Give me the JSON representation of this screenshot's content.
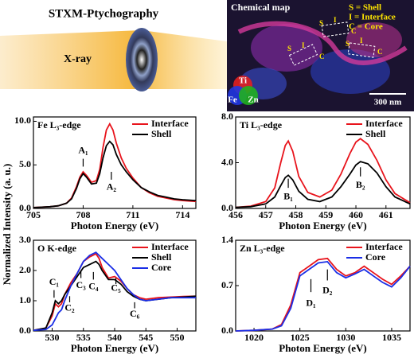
{
  "illustration": {
    "title": "STXM-Ptychography",
    "beam_label": "X-ray"
  },
  "map": {
    "title": "Chemical map",
    "legend": [
      "S = Shell",
      "I = Interface",
      "C = Core"
    ],
    "scale_bar": "300 nm",
    "channels": [
      "Ti",
      "Fe",
      "Zn"
    ],
    "boxes": [
      [
        "S",
        "I",
        "C"
      ],
      [
        "S",
        "I",
        "C"
      ],
      [
        "S",
        "I",
        "C"
      ]
    ]
  },
  "y_label": "Normalized Intensity (a. u.)",
  "chart_data": [
    {
      "type": "line",
      "title": "Fe L₃-edge",
      "xlabel": "Photon Energy (eV)",
      "xlim": [
        705,
        714.8
      ],
      "xticks": [
        705,
        708,
        711,
        714
      ],
      "ylim": [
        0,
        10.5
      ],
      "yticks": [
        {
          "value": 0,
          "label": "0.0"
        },
        {
          "value": 5,
          "label": "5.0"
        },
        {
          "value": 10,
          "label": "10.0"
        }
      ],
      "legend": "upper right",
      "annotations": [
        "A₁",
        "A₂"
      ],
      "x": [
        705,
        705.5,
        706,
        706.5,
        707,
        707.3,
        707.6,
        707.8,
        708.0,
        708.2,
        708.5,
        708.8,
        709.0,
        709.2,
        709.4,
        709.6,
        709.8,
        710.0,
        710.3,
        710.6,
        711,
        711.5,
        712,
        712.5,
        713,
        713.5,
        714,
        714.8
      ],
      "series": [
        {
          "name": "Interface",
          "color": "#e8141c",
          "values": [
            0.1,
            0.15,
            0.2,
            0.3,
            0.6,
            1.2,
            2.5,
            3.6,
            4.2,
            3.8,
            3.0,
            3.2,
            4.5,
            7.0,
            9.0,
            9.7,
            9.0,
            7.5,
            5.8,
            4.6,
            3.5,
            2.4,
            1.8,
            1.4,
            1.2,
            1.0,
            0.9,
            0.8
          ]
        },
        {
          "name": "Shell",
          "color": "#000000",
          "values": [
            0.1,
            0.15,
            0.2,
            0.3,
            0.6,
            1.1,
            2.3,
            3.4,
            4.0,
            3.6,
            2.8,
            2.9,
            4.0,
            5.8,
            7.2,
            7.7,
            7.3,
            6.2,
            5.0,
            4.2,
            3.3,
            2.4,
            1.9,
            1.5,
            1.3,
            1.1,
            1.0,
            0.9
          ]
        }
      ]
    },
    {
      "type": "line",
      "title": "Ti L₃-edge",
      "xlabel": "Photon Energy (eV)",
      "xlim": [
        456,
        461.8
      ],
      "xticks": [
        456,
        457,
        458,
        459,
        460,
        461
      ],
      "ylim": [
        0,
        8
      ],
      "yticks": [
        {
          "value": 0,
          "label": "0.0"
        },
        {
          "value": 4,
          "label": "4.0"
        },
        {
          "value": 8,
          "label": "8.0"
        }
      ],
      "legend": "upper right",
      "annotations": [
        "B₁",
        "B₂"
      ],
      "x": [
        456,
        456.5,
        457,
        457.3,
        457.5,
        457.65,
        457.75,
        457.9,
        458.1,
        458.4,
        458.8,
        459.2,
        459.5,
        459.8,
        460.0,
        460.15,
        460.4,
        460.7,
        461,
        461.3,
        461.8
      ],
      "series": [
        {
          "name": "Interface",
          "color": "#e8141c",
          "values": [
            0.1,
            0.2,
            0.6,
            1.8,
            4.0,
            5.5,
            5.9,
            5.0,
            2.8,
            1.4,
            1.0,
            1.6,
            3.0,
            4.8,
            5.8,
            6.1,
            5.6,
            4.2,
            2.5,
            1.3,
            0.5
          ]
        },
        {
          "name": "Shell",
          "color": "#000000",
          "values": [
            0.1,
            0.15,
            0.4,
            1.0,
            2.0,
            2.7,
            2.9,
            2.5,
            1.5,
            0.8,
            0.6,
            1.0,
            1.9,
            3.0,
            3.8,
            4.1,
            3.9,
            3.1,
            1.9,
            1.0,
            0.4
          ]
        }
      ]
    },
    {
      "type": "line",
      "title": "O K-edge",
      "xlabel": "Photon Energy (eV)",
      "xlim": [
        527,
        553
      ],
      "xticks": [
        530,
        535,
        540,
        545,
        550
      ],
      "ylim": [
        0,
        3
      ],
      "yticks": [
        {
          "value": 0,
          "label": "0.0"
        },
        {
          "value": 1,
          "label": "1.0"
        },
        {
          "value": 2,
          "label": "2.0"
        },
        {
          "value": 3,
          "label": "3.0"
        }
      ],
      "legend": "upper right",
      "annotations": [
        "C₁",
        "C₂",
        "C₃",
        "C₄",
        "C₅",
        "C₆"
      ],
      "x": [
        527,
        529,
        530,
        530.5,
        531,
        531.5,
        532,
        533,
        534,
        535,
        536,
        537,
        537.5,
        538,
        539,
        540,
        541,
        542,
        543,
        544,
        545,
        547,
        549,
        551,
        553
      ],
      "series": [
        {
          "name": "Interface",
          "color": "#e8141c",
          "values": [
            0.02,
            0.1,
            0.5,
            0.9,
            0.8,
            0.9,
            1.2,
            1.6,
            1.9,
            2.3,
            2.45,
            2.55,
            2.4,
            2.1,
            1.75,
            1.8,
            1.65,
            1.4,
            1.2,
            1.1,
            1.05,
            1.1,
            1.12,
            1.14,
            1.15
          ]
        },
        {
          "name": "Shell",
          "color": "#000000",
          "values": [
            0.02,
            0.1,
            0.6,
            1.0,
            0.9,
            1.0,
            1.2,
            1.5,
            1.8,
            2.1,
            2.2,
            2.3,
            2.2,
            2.0,
            1.7,
            1.7,
            1.55,
            1.3,
            1.15,
            1.05,
            1.0,
            1.05,
            1.1,
            1.12,
            1.15
          ]
        },
        {
          "name": "Core",
          "color": "#1a2ee6",
          "values": [
            0.02,
            0.05,
            0.2,
            0.4,
            0.6,
            0.7,
            1.0,
            1.5,
            1.9,
            2.3,
            2.5,
            2.6,
            2.5,
            2.4,
            2.2,
            2.0,
            1.7,
            1.4,
            1.2,
            1.05,
            1.0,
            1.05,
            1.1,
            1.1,
            1.1
          ]
        }
      ]
    },
    {
      "type": "line",
      "title": "Zn L₃-edge",
      "xlabel": "Photon Energy (eV)",
      "xlim": [
        1018,
        1037
      ],
      "xticks": [
        1020,
        1025,
        1030,
        1035
      ],
      "ylim": [
        0,
        1.4
      ],
      "yticks": [
        {
          "value": 0,
          "label": "0.0"
        },
        {
          "value": 0.7,
          "label": "0.7"
        },
        {
          "value": 1.4,
          "label": "1.4"
        }
      ],
      "legend": "upper right",
      "annotations": [
        "D₁",
        "D₂"
      ],
      "x": [
        1018,
        1020,
        1022,
        1023,
        1024,
        1025,
        1026,
        1027,
        1028,
        1029,
        1030,
        1031,
        1032,
        1033,
        1034,
        1035,
        1036,
        1037
      ],
      "series": [
        {
          "name": "Interface",
          "color": "#e8141c",
          "values": [
            0.0,
            0.01,
            0.03,
            0.1,
            0.4,
            0.9,
            1.0,
            1.1,
            1.12,
            0.95,
            0.85,
            0.9,
            1.0,
            0.9,
            0.8,
            0.72,
            0.85,
            1.0
          ]
        },
        {
          "name": "Core",
          "color": "#1a2ee6",
          "values": [
            0.0,
            0.01,
            0.03,
            0.08,
            0.35,
            0.85,
            0.95,
            1.05,
            1.07,
            0.9,
            0.82,
            0.88,
            0.95,
            0.85,
            0.75,
            0.68,
            0.82,
            1.0
          ]
        }
      ]
    }
  ]
}
